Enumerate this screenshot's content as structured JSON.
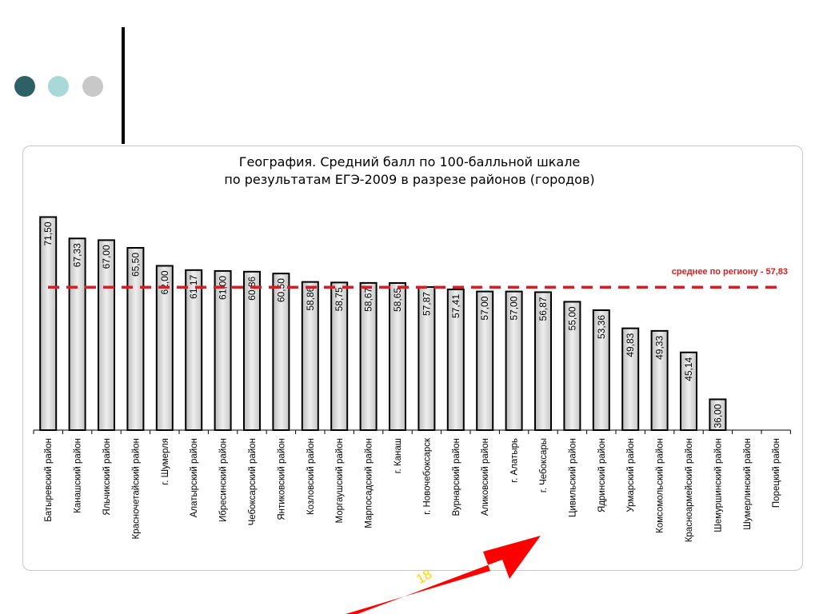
{
  "slide": {
    "page_number": "18",
    "dot_colors": [
      "#2e6166",
      "#a8d8d8",
      "#c8c8c8"
    ],
    "arrow_color": "#ff0000",
    "page_number_color": "#ffd400"
  },
  "chart_data": {
    "type": "bar",
    "title": "География. Средний балл по 100-балльной шкале",
    "subtitle": "по результатам ЕГЭ-2009 в разрезе районов (городов)",
    "categories": [
      "Батыревский район",
      "Канашский район",
      "Яльчикский район",
      "Красночетайский район",
      "г. Шумерля",
      "Алатырский район",
      "Ибресинский район",
      "Чебоксарский район",
      "Янтиковский район",
      "Козловский район",
      "Моргаушский район",
      "Марпосадский район",
      "г. Канаш",
      "г. Новочебоксарск",
      "Вурнарский район",
      "Аликовский район",
      "г. Алатырь",
      "г. Чебоксары",
      "Цивильский район",
      "Ядринский район",
      "Урмарский район",
      "Комсомольский район",
      "Красноармейский район",
      "Шемуршинский район",
      "Шумерлинский район",
      "Порецкий район"
    ],
    "values": [
      71.5,
      67.33,
      67.0,
      65.5,
      62.0,
      61.17,
      61.0,
      60.86,
      60.5,
      58.86,
      58.75,
      58.67,
      58.65,
      57.87,
      57.41,
      57.0,
      57.0,
      56.87,
      55.0,
      53.36,
      49.83,
      49.33,
      45.14,
      36.0,
      null,
      null
    ],
    "value_labels": [
      "71,50",
      "67,33",
      "67,00",
      "65,50",
      "62,00",
      "61,17",
      "61,00",
      "60,86",
      "60,50",
      "58,86",
      "58,75",
      "58,67",
      "58,65",
      "57,87",
      "57,41",
      "57,00",
      "57,00",
      "56,87",
      "55,00",
      "53,36",
      "49,83",
      "49,33",
      "45,14",
      "36,00",
      "",
      ""
    ],
    "ylim": [
      30,
      75
    ],
    "reference_line": {
      "value": 57.83,
      "label": "среднее по региону - 57,83",
      "color": "#d42020"
    },
    "grid": false,
    "legend": "none"
  }
}
